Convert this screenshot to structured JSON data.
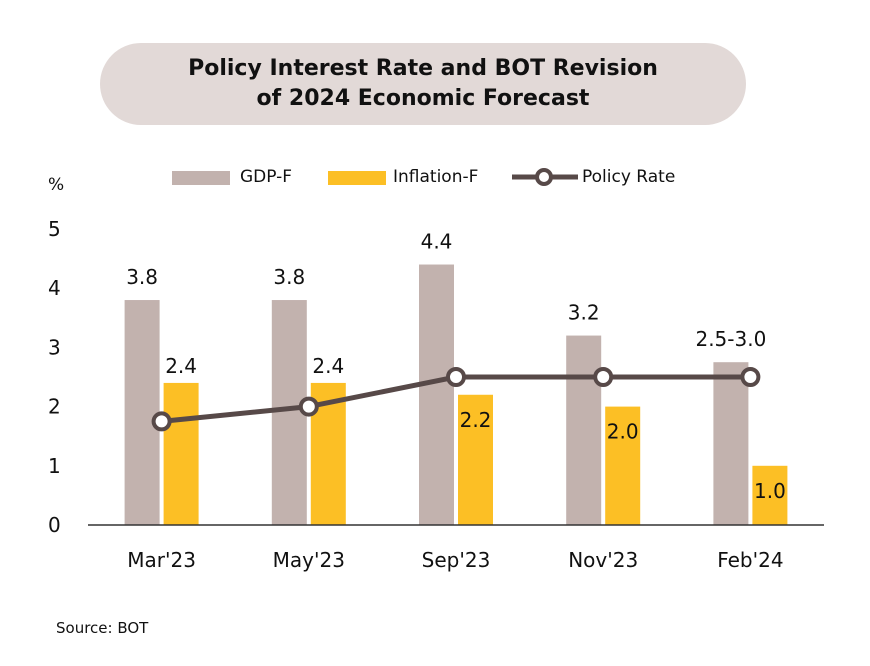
{
  "title": {
    "line1": "Policy Interest Rate and BOT Revision",
    "line2": "of 2024 Economic Forecast"
  },
  "source": "Source: BOT",
  "colors": {
    "gdp": "#c2b2ae",
    "inflation": "#fcbf25",
    "policy": "#574948",
    "axis": "#333333",
    "title_bg": "#e2d9d7"
  },
  "chart_data": {
    "type": "bar",
    "ylabel": "%",
    "ylim": [
      0,
      5
    ],
    "yticks": [
      "0",
      "1",
      "2",
      "3",
      "4",
      "5"
    ],
    "categories": [
      "Mar'23",
      "May'23",
      "Sep'23",
      "Nov'23",
      "Feb'24"
    ],
    "grid": false,
    "legend_position": "top",
    "series": [
      {
        "name": "GDP-F",
        "type": "bar",
        "values": [
          3.8,
          3.8,
          4.4,
          3.2,
          2.75
        ],
        "labels": [
          "3.8",
          "3.8",
          "4.4",
          "3.2",
          "2.5-3.0"
        ]
      },
      {
        "name": "Inflation-F",
        "type": "bar",
        "values": [
          2.4,
          2.4,
          2.2,
          2.0,
          1.0
        ],
        "labels": [
          "2.4",
          "2.4",
          "2.2",
          "2.0",
          "1.0"
        ]
      },
      {
        "name": "Policy Rate",
        "type": "line",
        "values": [
          1.75,
          2.0,
          2.5,
          2.5,
          2.5
        ]
      }
    ]
  }
}
